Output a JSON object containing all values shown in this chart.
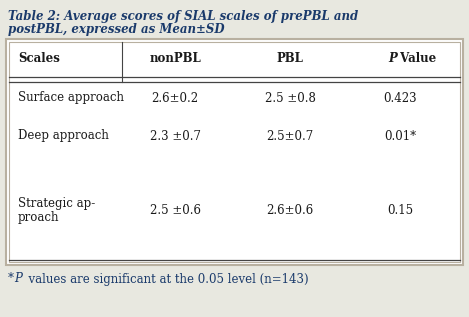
{
  "title_line1": "Table 2: Average scores of SIAL scales of prePBL and",
  "title_line2": "postPBL, expressed as Mean±SD",
  "title_color": "#1a3a6b",
  "columns": [
    "Scales",
    "nonPBL",
    "PBL",
    "P Value"
  ],
  "rows": [
    [
      "Surface approach",
      "2.6±0.2",
      "2.5 ±0.8",
      "0.423"
    ],
    [
      "Deep approach",
      "2.3 ±0.7",
      "2.5±0.7",
      "0.01*"
    ],
    [
      "Strategic ap-\nproach",
      "2.5 ±0.6",
      "2.6±0.6",
      "0.15"
    ]
  ],
  "footer_star": "*",
  "footer_P": "P",
  "footer_rest": "  values are significant at the 0.05 level (n=143)",
  "footer_color": "#1a3a6b",
  "bg_color": "#e8e8e0",
  "table_bg": "#ffffff",
  "border_color": "#b8b0a0",
  "text_color": "#1a1a1a",
  "fontsize": 8.5
}
